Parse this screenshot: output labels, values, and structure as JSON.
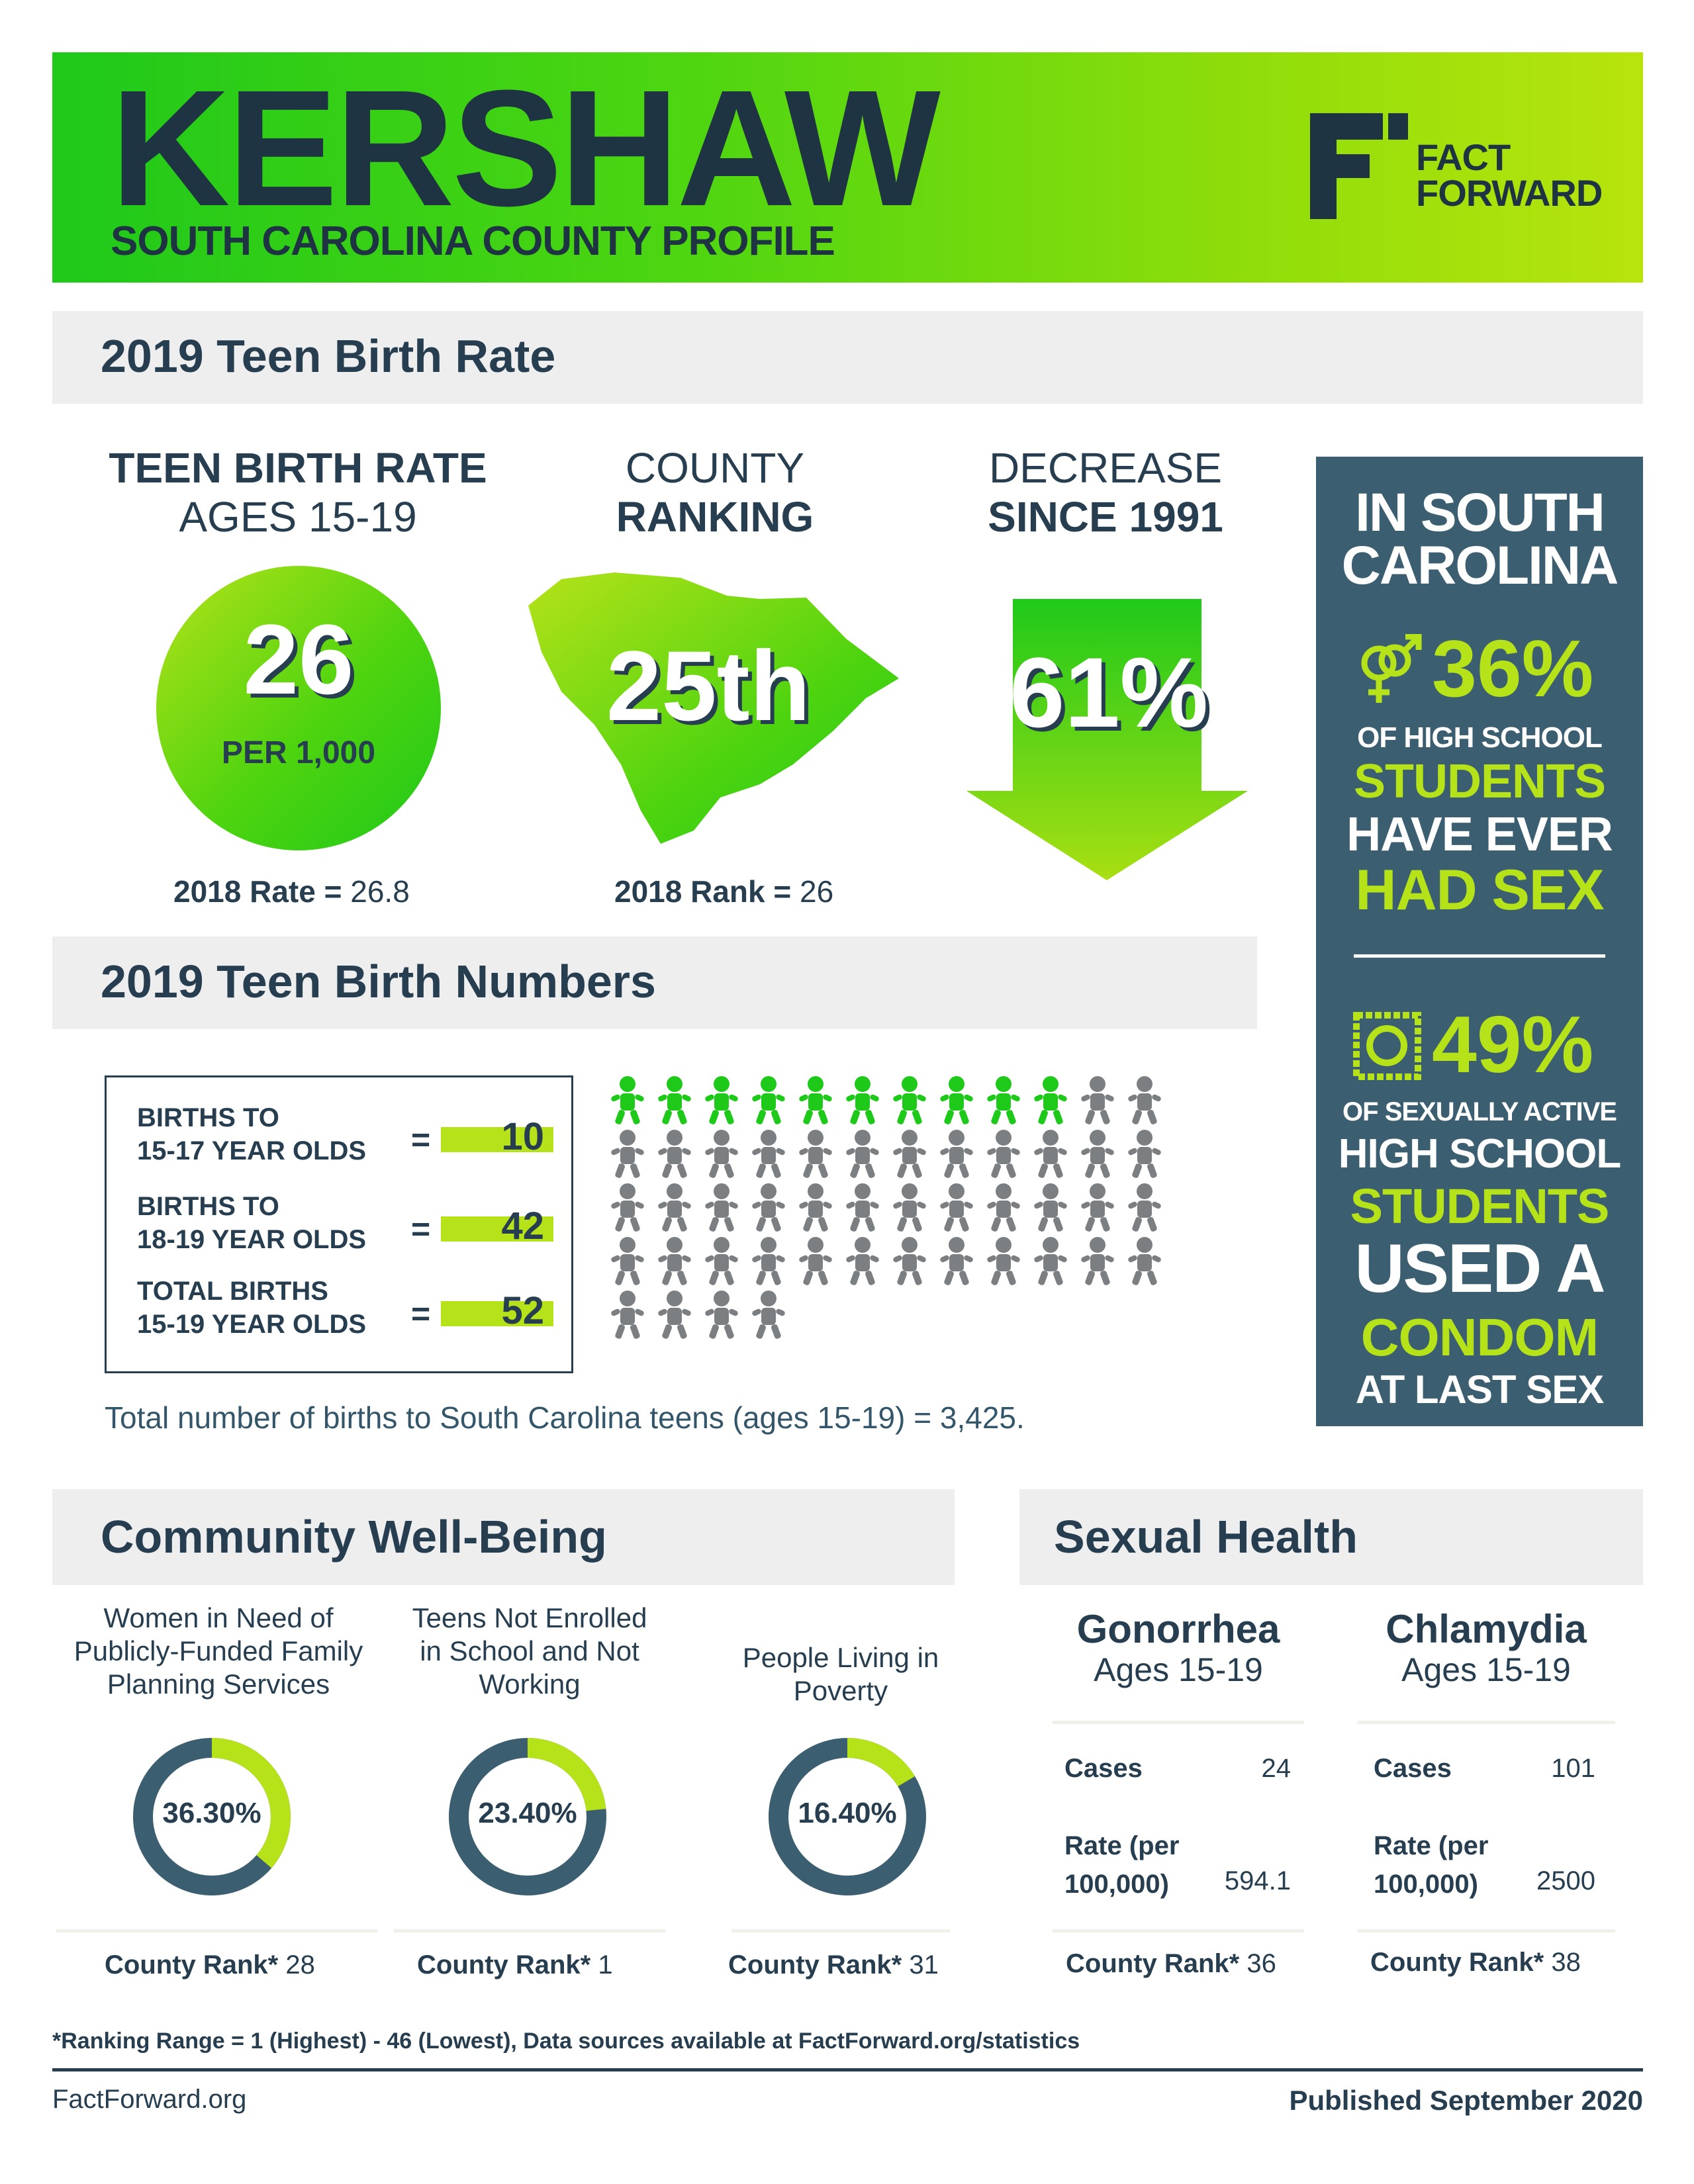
{
  "header": {
    "county": "KERSHAW",
    "subtitle": "SOUTH CAROLINA COUNTY PROFILE",
    "logo_line1": "FACT",
    "logo_line2": "FORWARD"
  },
  "teen_birth_rate": {
    "section_title": "2019 Teen Birth Rate",
    "rate_head_1": "TEEN BIRTH RATE",
    "rate_head_2": "AGES 15-19",
    "rate_value": "26",
    "rate_unit": "PER 1,000",
    "rate_2018_label": "2018 Rate =",
    "rate_2018_value": "26.8",
    "rank_head_1": "COUNTY",
    "rank_head_2": "RANKING",
    "rank_value": "25th",
    "rank_2018_label": "2018 Rank =",
    "rank_2018_value": "26",
    "decrease_head_1": "DECREASE",
    "decrease_head_2": "SINCE 1991",
    "decrease_value": "61%"
  },
  "side_panel": {
    "title_1": "IN SOUTH",
    "title_2": "CAROLINA",
    "stat1_value": "36%",
    "stat1_l1": "OF HIGH SCHOOL",
    "stat1_l2": "STUDENTS",
    "stat1_l3": "HAVE EVER",
    "stat1_l4": "HAD SEX",
    "stat2_value": "49%",
    "stat2_l1": "OF SEXUALLY ACTIVE",
    "stat2_l2": "HIGH SCHOOL",
    "stat2_l3": "STUDENTS",
    "stat2_l4": "USED A",
    "stat2_l5": "CONDOM",
    "stat2_l6": "AT LAST SEX",
    "icon1": "gender-symbols-icon",
    "icon2": "condom-icon"
  },
  "birth_numbers": {
    "section_title": "2019 Teen Birth Numbers",
    "rows": [
      {
        "l1": "BIRTHS TO",
        "l2": "15-17 YEAR OLDS",
        "eq": "=",
        "value": "10"
      },
      {
        "l1": "BIRTHS TO",
        "l2": "18-19 YEAR OLDS",
        "eq": "=",
        "value": "42"
      },
      {
        "l1": "TOTAL BIRTHS",
        "l2": "15-19 YEAR OLDS",
        "eq": "=",
        "value": "52"
      }
    ],
    "icons_highlighted": 10,
    "icons_total": 52,
    "footnote": "Total number of births to South Carolina teens (ages 15-19) = 3,425."
  },
  "community": {
    "section_title": "Community Well-Being",
    "items": [
      {
        "label_1": "Women in Need of",
        "label_2": "Publicly-Funded Family",
        "label_3": "Planning Services",
        "value": "36.30%",
        "fraction": 0.363,
        "rank_label": "County Rank*",
        "rank": "28"
      },
      {
        "label_1": "Teens Not Enrolled",
        "label_2": "in School and Not",
        "label_3": "Working",
        "value": "23.40%",
        "fraction": 0.234,
        "rank_label": "County Rank*",
        "rank": "1"
      },
      {
        "label_1": "People Living in",
        "label_2": "Poverty",
        "label_3": "",
        "value": "16.40%",
        "fraction": 0.164,
        "rank_label": "County Rank*",
        "rank": "31"
      }
    ]
  },
  "sexual_health": {
    "section_title": "Sexual Health",
    "gonorrhea": {
      "title": "Gonorrhea",
      "sub": "Ages 15-19",
      "cases_label": "Cases",
      "cases": "24",
      "rate_label_1": "Rate (per",
      "rate_label_2": "100,000)",
      "rate": "594.1",
      "rank_label": "County Rank*",
      "rank": "36"
    },
    "chlamydia": {
      "title": "Chlamydia",
      "sub": "Ages 15-19",
      "cases_label": "Cases",
      "cases": "101",
      "rate_label_1": "Rate (per",
      "rate_label_2": "100,000)",
      "rate": "2500",
      "rank_label": "County Rank*",
      "rank": "38"
    }
  },
  "footer": {
    "note": "*Ranking Range = 1 (Highest) - 46 (Lowest), Data sources available at FactForward.org/statistics",
    "site": "FactForward.org",
    "published": "Published September 2020"
  },
  "colors": {
    "green": "#1fc91a",
    "lime": "#b6e219",
    "navy": "#263e4f",
    "slate": "#3b5e70",
    "gray_icon": "#7c7f82"
  }
}
